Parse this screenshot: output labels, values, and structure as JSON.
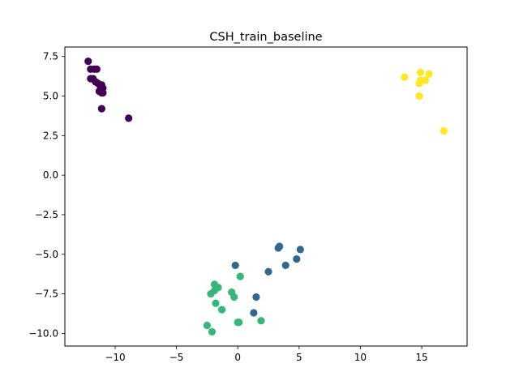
{
  "chart_data": {
    "type": "scatter",
    "title": "CSH_train_baseline",
    "xlabel": "",
    "ylabel": "",
    "xlim": [
      -14.1,
      18.7
    ],
    "ylim": [
      -10.8,
      8.1
    ],
    "x_ticks": [
      -10,
      -5,
      0,
      5,
      10,
      15
    ],
    "x_tick_labels": [
      "−10",
      "−5",
      "0",
      "5",
      "10",
      "15"
    ],
    "y_ticks": [
      -10.0,
      -7.5,
      -5.0,
      -2.5,
      0.0,
      2.5,
      5.0,
      7.5
    ],
    "y_tick_labels": [
      "−10.0",
      "−7.5",
      "−5.0",
      "−2.5",
      "0.0",
      "2.5",
      "5.0",
      "7.5"
    ],
    "grid": false,
    "legend": "none",
    "series": [
      {
        "color": "#440154",
        "x": [
          -12.2,
          -12.0,
          -11.7,
          -11.5,
          -11.8,
          -12.0,
          -11.4,
          -11.6,
          -11.1,
          -11.2,
          -11.0,
          -11.3,
          -11.1,
          -11.0,
          -11.1,
          -8.9
        ],
        "y": [
          7.2,
          6.7,
          6.7,
          6.7,
          6.1,
          6.1,
          5.8,
          5.9,
          5.7,
          5.6,
          5.5,
          5.3,
          5.2,
          5.2,
          4.2,
          3.6
        ]
      },
      {
        "color": "#31688e",
        "x": [
          -0.2,
          3.3,
          3.4,
          5.1,
          2.5,
          4.8,
          3.9,
          1.5,
          1.3
        ],
        "y": [
          -5.7,
          -4.6,
          -4.5,
          -4.7,
          -6.1,
          -5.3,
          -5.7,
          -7.7,
          -8.7
        ]
      },
      {
        "color": "#35b779",
        "x": [
          -1.9,
          -2.2,
          -1.6,
          -1.8,
          -0.5,
          0.2,
          -0.3,
          -1.9,
          -1.3,
          -2.5,
          0.0,
          0.1,
          1.9,
          -2.1
        ],
        "y": [
          -6.9,
          -7.5,
          -7.1,
          -8.1,
          -7.4,
          -6.4,
          -7.7,
          -7.3,
          -8.5,
          -9.5,
          -9.3,
          -9.3,
          -9.2,
          -9.9
        ]
      },
      {
        "color": "#fde725",
        "x": [
          13.6,
          14.9,
          15.6,
          14.8,
          15.3,
          14.9,
          14.8,
          16.8
        ],
        "y": [
          6.2,
          6.5,
          6.4,
          5.8,
          6.0,
          6.0,
          5.0,
          2.8
        ]
      }
    ]
  }
}
